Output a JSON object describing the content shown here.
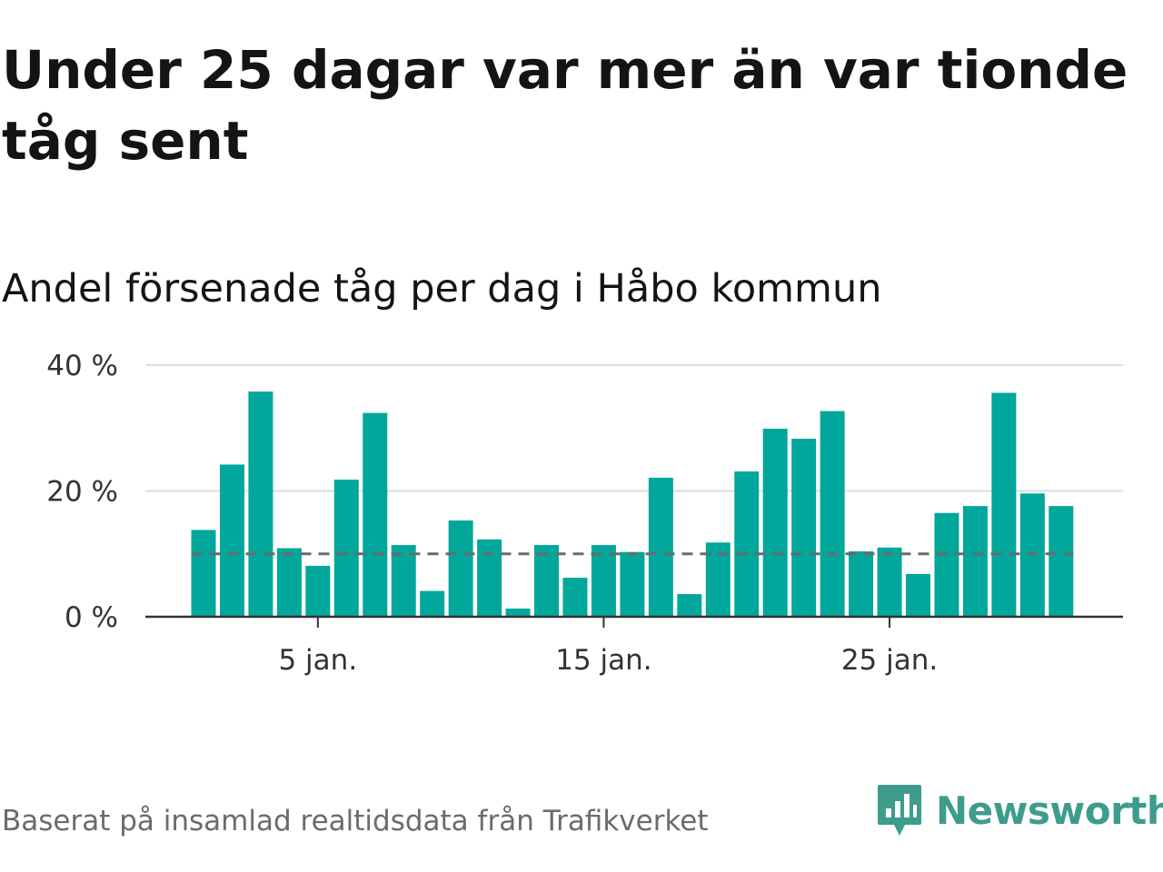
{
  "title": "Under 25 dagar var mer än var tionde tåg sent",
  "subtitle": "Andel försenade tåg per dag i Håbo kommun",
  "footer": "Baserat på insamlad realtidsdata från Trafikverket",
  "brand": {
    "name": "Newsworthy",
    "icon": "newsworthy-logo-icon",
    "color": "#3e9c8c"
  },
  "colors": {
    "bar": "#00a79a",
    "reference_line": "#6b6b6b",
    "grid": "#dddddd",
    "axis": "#333333"
  },
  "chart_data": {
    "type": "bar",
    "x": [
      1,
      2,
      3,
      4,
      5,
      6,
      7,
      8,
      9,
      10,
      11,
      12,
      13,
      14,
      15,
      16,
      17,
      18,
      19,
      20,
      21,
      22,
      23,
      24,
      25,
      26,
      27,
      28,
      29,
      30,
      31
    ],
    "values": [
      13.8,
      24.2,
      35.8,
      10.9,
      8.1,
      21.8,
      32.4,
      11.4,
      4.1,
      15.3,
      12.3,
      1.3,
      11.4,
      6.2,
      11.4,
      10.3,
      22.1,
      3.6,
      11.8,
      23.1,
      29.9,
      28.3,
      32.7,
      10.4,
      11.0,
      6.8,
      16.5,
      17.6,
      35.6,
      19.6,
      17.6
    ],
    "reference_line": 10,
    "ylim": [
      0,
      40
    ],
    "y_ticks": [
      0,
      20,
      40
    ],
    "y_tick_labels": [
      "0 %",
      "20 %",
      "40 %"
    ],
    "x_ticks": [
      5,
      15,
      25
    ],
    "x_tick_labels": [
      "5 jan.",
      "15 jan.",
      "25 jan."
    ],
    "grid": true
  }
}
